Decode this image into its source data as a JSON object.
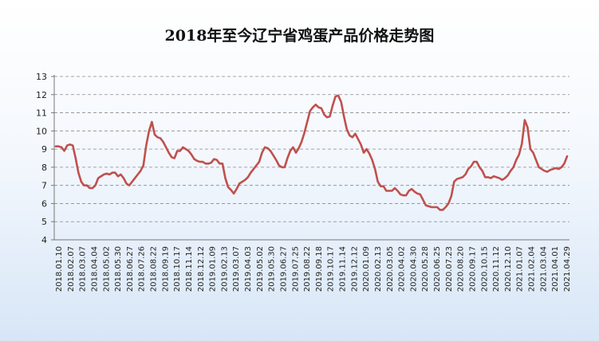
{
  "chart_data": {
    "type": "line",
    "title": "2018年至今辽宁省鸡蛋产品价格走势图",
    "ylim": [
      4,
      13
    ],
    "y_ticks": [
      "13",
      "12",
      "11",
      "10",
      "9",
      "8",
      "7",
      "6",
      "5",
      "4"
    ],
    "grid": "horizontal dashed",
    "legend": "none",
    "line_color": "#c0504d",
    "x_tick_labels": [
      "2018.01.10",
      "2018.02.07",
      "2018.03.07",
      "2018.04.04",
      "2018.05.02",
      "2018.05.30",
      "2018.06.27",
      "2018.07.26",
      "2018.08.22",
      "2018.09.19",
      "2018.10.17",
      "2018.11.14",
      "2018.12.12",
      "2019.01.09",
      "2019.02.13",
      "2019.03.07",
      "2019.04.03",
      "2019.05.02",
      "2019.05.30",
      "2019.06.27",
      "2019.07.25",
      "2019.08.22",
      "2019.09.18",
      "2019.10.17",
      "2019.11.14",
      "2019.12.12",
      "2020.01.09",
      "2020.02.13",
      "2020.03.05",
      "2020.04.02",
      "2020.04.30",
      "2020.05.28",
      "2020.06.25",
      "2020.07.23",
      "2020.08.20",
      "2020.09.17",
      "2020.10.15",
      "2020.11.12",
      "2020.12.10",
      "2021.01.07",
      "2021.02.04",
      "2021.03.04",
      "2021.04.01",
      "2021.04.29"
    ],
    "series": [
      {
        "values": [
          9.15,
          9.15,
          9.1,
          8.9,
          9.2,
          9.25,
          9.2,
          8.5,
          7.7,
          7.2,
          7.0,
          7.0,
          6.85,
          6.85,
          7.0,
          7.4,
          7.5,
          7.6,
          7.65,
          7.6,
          7.7,
          7.7,
          7.5,
          7.6,
          7.4,
          7.1,
          7.0,
          7.2,
          7.4,
          7.6,
          7.8,
          8.1,
          9.2,
          10.0,
          10.5,
          9.8,
          9.65,
          9.6,
          9.4,
          9.1,
          8.8,
          8.55,
          8.5,
          8.9,
          8.9,
          9.1,
          9.0,
          8.9,
          8.7,
          8.45,
          8.35,
          8.3,
          8.3,
          8.2,
          8.2,
          8.25,
          8.45,
          8.4,
          8.2,
          8.2,
          7.4,
          6.9,
          6.75,
          6.55,
          6.8,
          7.1,
          7.2,
          7.3,
          7.45,
          7.7,
          7.9,
          8.1,
          8.3,
          8.8,
          9.1,
          9.05,
          8.9,
          8.65,
          8.4,
          8.1,
          8.0,
          8.0,
          8.5,
          8.9,
          9.1,
          8.8,
          9.05,
          9.4,
          9.9,
          10.5,
          11.1,
          11.3,
          11.45,
          11.3,
          11.25,
          10.9,
          10.75,
          10.8,
          11.4,
          11.9,
          11.95,
          11.6,
          10.8,
          10.1,
          9.75,
          9.65,
          9.85,
          9.55,
          9.25,
          8.8,
          9.0,
          8.75,
          8.4,
          7.9,
          7.2,
          6.95,
          6.95,
          6.7,
          6.7,
          6.7,
          6.85,
          6.7,
          6.5,
          6.45,
          6.45,
          6.7,
          6.8,
          6.65,
          6.55,
          6.5,
          6.2,
          5.9,
          5.85,
          5.8,
          5.8,
          5.8,
          5.65,
          5.65,
          5.8,
          6.0,
          6.4,
          7.2,
          7.35,
          7.4,
          7.45,
          7.6,
          7.9,
          8.05,
          8.3,
          8.3,
          8.0,
          7.8,
          7.45,
          7.45,
          7.4,
          7.5,
          7.45,
          7.4,
          7.3,
          7.4,
          7.55,
          7.8,
          8.0,
          8.4,
          8.7,
          9.3,
          10.6,
          10.2,
          9.0,
          8.8,
          8.4,
          8.0,
          7.9,
          7.8,
          7.75,
          7.85,
          7.9,
          7.95,
          7.9,
          8.0,
          8.2,
          8.6
        ]
      }
    ]
  }
}
